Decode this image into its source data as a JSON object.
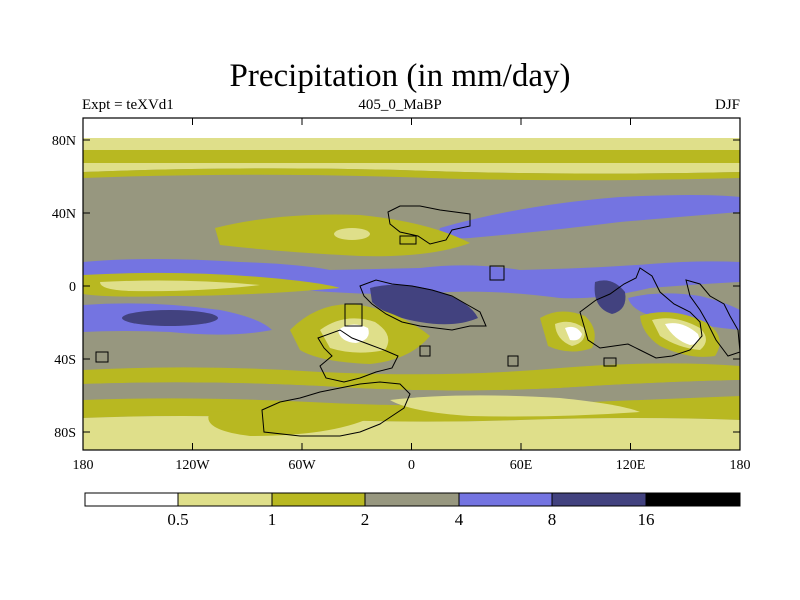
{
  "title": "Precipitation (in mm/day)",
  "subtitle_left": "Expt = teXVd1",
  "subtitle_center": "405_0_MaBP",
  "subtitle_right": "DJF",
  "axes": {
    "lat_ticks": [
      "80N",
      "40N",
      "0",
      "40S",
      "80S"
    ],
    "lon_ticks": [
      "180",
      "120W",
      "60W",
      "0",
      "60E",
      "120E",
      "180"
    ]
  },
  "colorbar": {
    "labels": [
      "0.5",
      "1",
      "2",
      "4",
      "8",
      "16"
    ],
    "colors": [
      "#ffffff",
      "#dfdf8a",
      "#b8b821",
      "#97977f",
      "#7474e1",
      "#42427f",
      "#000000"
    ]
  },
  "chart_data": {
    "type": "heatmap",
    "title": "Precipitation (in mm/day)",
    "variable": "Precipitation",
    "units": "mm/day",
    "season": "DJF",
    "experiment": "teXVd1",
    "period": "405_0_MaBP",
    "x_axis": {
      "ticks": [
        "180",
        "120W",
        "60W",
        "0",
        "60E",
        "120E",
        "180"
      ],
      "range": [
        -180,
        180
      ]
    },
    "y_axis": {
      "ticks": [
        "80N",
        "40N",
        "0",
        "40S",
        "80S"
      ],
      "range": [
        -90,
        90
      ]
    },
    "levels": [
      0.5,
      1,
      2,
      4,
      8,
      16
    ]
  }
}
